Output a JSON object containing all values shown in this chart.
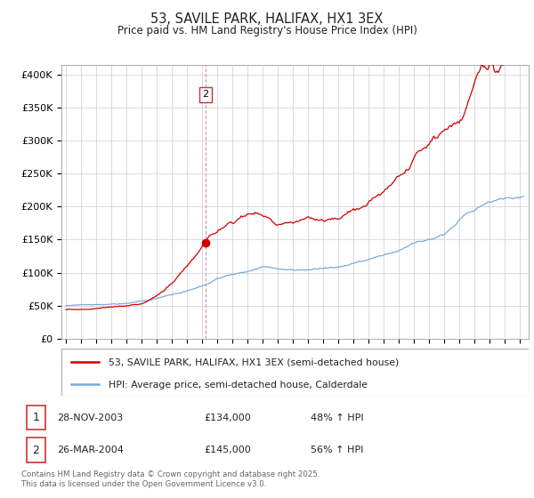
{
  "title": "53, SAVILE PARK, HALIFAX, HX1 3EX",
  "subtitle": "Price paid vs. HM Land Registry's House Price Index (HPI)",
  "red_label": "53, SAVILE PARK, HALIFAX, HX1 3EX (semi-detached house)",
  "blue_label": "HPI: Average price, semi-detached house, Calderdale",
  "ylabel_ticks": [
    "£0",
    "£50K",
    "£100K",
    "£150K",
    "£200K",
    "£250K",
    "£300K",
    "£350K",
    "£400K"
  ],
  "ytick_values": [
    0,
    50000,
    100000,
    150000,
    200000,
    250000,
    300000,
    350000,
    400000
  ],
  "ylim": [
    0,
    415000
  ],
  "transaction2_date": 2004.22,
  "transaction2_price": 145000,
  "footnote1_num": "1",
  "footnote1_date": "28-NOV-2003",
  "footnote1_price": "£134,000",
  "footnote1_hpi": "48% ↑ HPI",
  "footnote2_num": "2",
  "footnote2_date": "26-MAR-2004",
  "footnote2_price": "£145,000",
  "footnote2_hpi": "56% ↑ HPI",
  "copyright": "Contains HM Land Registry data © Crown copyright and database right 2025.\nThis data is licensed under the Open Government Licence v3.0.",
  "red_color": "#cc0000",
  "blue_color": "#7aabdc",
  "background_color": "#ffffff",
  "grid_color": "#cccccc",
  "annotation_box_color": "#cc3333"
}
